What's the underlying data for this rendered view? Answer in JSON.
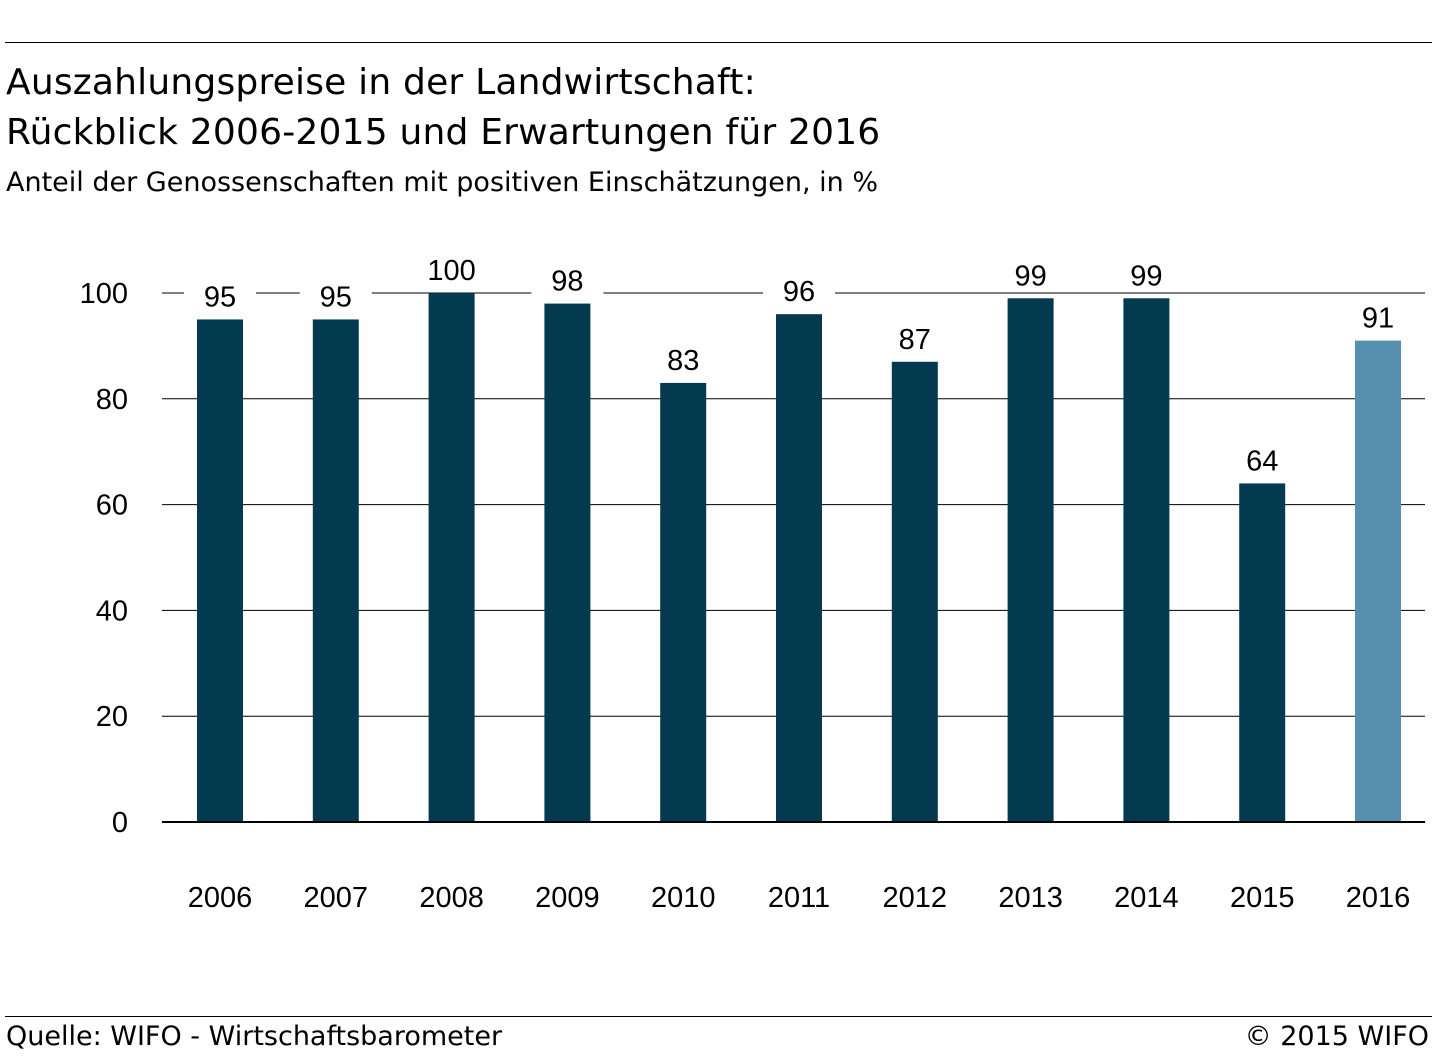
{
  "header": {
    "title_line1": "Auszahlungspreise in der Landwirtschaft:",
    "title_line2": "Rückblick 2006-2015 und Erwartungen für 2016",
    "subtitle": "Anteil der Genossenschaften mit positiven Einschätzungen, in %"
  },
  "footer": {
    "source": "Quelle: WIFO - Wirtschaftsbarometer",
    "copyright": "© 2015 WIFO"
  },
  "chart_data": {
    "type": "bar",
    "title": "Auszahlungspreise in der Landwirtschaft: Rückblick 2006-2015 und Erwartungen für 2016",
    "subtitle": "Anteil der Genossenschaften mit positiven Einschätzungen, in %",
    "categories": [
      "2006",
      "2007",
      "2008",
      "2009",
      "2010",
      "2011",
      "2012",
      "2013",
      "2014",
      "2015",
      "2016"
    ],
    "values": [
      95,
      95,
      100,
      98,
      83,
      96,
      87,
      99,
      99,
      64,
      91
    ],
    "data_labels": [
      "95",
      "95",
      "100",
      "98",
      "83",
      "96",
      "87",
      "99",
      "99",
      "64",
      "91"
    ],
    "y_ticks": [
      "0",
      "20",
      "40",
      "60",
      "80",
      "100"
    ],
    "ylim": [
      0,
      100
    ],
    "grid": true,
    "legend": "none",
    "colors": {
      "bar": "#043a4f",
      "bar_expected": "#5591ad",
      "grid": "#000000"
    }
  }
}
